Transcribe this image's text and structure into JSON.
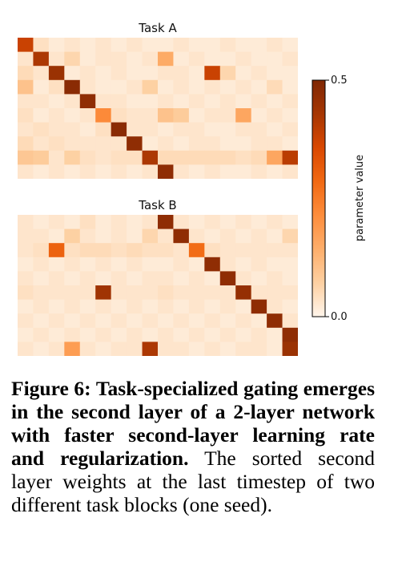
{
  "chart_data": [
    {
      "type": "heatmap",
      "title": "Task A",
      "rows": 10,
      "cols": 18,
      "vmin": 0.0,
      "vmax": 0.5,
      "values": [
        [
          0.38,
          0.04,
          0.02,
          0.03,
          0.02,
          0.03,
          0.02,
          0.03,
          0.02,
          0.02,
          0.03,
          0.02,
          0.02,
          0.03,
          0.02,
          0.02,
          0.03,
          0.02
        ],
        [
          0.03,
          0.42,
          0.03,
          0.06,
          0.02,
          0.03,
          0.03,
          0.02,
          0.03,
          0.15,
          0.02,
          0.03,
          0.02,
          0.02,
          0.03,
          0.02,
          0.02,
          0.03
        ],
        [
          0.05,
          0.03,
          0.45,
          0.02,
          0.03,
          0.02,
          0.03,
          0.02,
          0.02,
          0.03,
          0.03,
          0.02,
          0.38,
          0.06,
          0.02,
          0.03,
          0.02,
          0.02
        ],
        [
          0.1,
          0.02,
          0.04,
          0.48,
          0.03,
          0.02,
          0.02,
          0.03,
          0.07,
          0.02,
          0.03,
          0.02,
          0.03,
          0.02,
          0.03,
          0.02,
          0.05,
          0.02
        ],
        [
          0.03,
          0.03,
          0.02,
          0.03,
          0.47,
          0.03,
          0.03,
          0.02,
          0.02,
          0.03,
          0.02,
          0.03,
          0.02,
          0.03,
          0.02,
          0.03,
          0.02,
          0.03
        ],
        [
          0.04,
          0.02,
          0.03,
          0.02,
          0.03,
          0.22,
          0.04,
          0.03,
          0.03,
          0.1,
          0.08,
          0.02,
          0.03,
          0.03,
          0.16,
          0.02,
          0.03,
          0.02
        ],
        [
          0.03,
          0.04,
          0.03,
          0.03,
          0.02,
          0.04,
          0.48,
          0.03,
          0.03,
          0.02,
          0.03,
          0.03,
          0.02,
          0.02,
          0.03,
          0.03,
          0.02,
          0.03
        ],
        [
          0.05,
          0.03,
          0.04,
          0.03,
          0.03,
          0.03,
          0.03,
          0.47,
          0.02,
          0.03,
          0.02,
          0.03,
          0.03,
          0.02,
          0.02,
          0.03,
          0.03,
          0.02
        ],
        [
          0.09,
          0.08,
          0.03,
          0.07,
          0.04,
          0.03,
          0.04,
          0.04,
          0.42,
          0.05,
          0.05,
          0.05,
          0.05,
          0.05,
          0.04,
          0.05,
          0.16,
          0.4
        ],
        [
          0.03,
          0.02,
          0.03,
          0.02,
          0.03,
          0.02,
          0.03,
          0.02,
          0.03,
          0.47,
          0.03,
          0.02,
          0.03,
          0.02,
          0.02,
          0.03,
          0.02,
          0.03
        ]
      ]
    },
    {
      "type": "heatmap",
      "title": "Task B",
      "rows": 10,
      "cols": 18,
      "vmin": 0.0,
      "vmax": 0.5,
      "values": [
        [
          0.03,
          0.02,
          0.03,
          0.02,
          0.04,
          0.02,
          0.03,
          0.02,
          0.03,
          0.47,
          0.03,
          0.02,
          0.03,
          0.02,
          0.03,
          0.02,
          0.03,
          0.02
        ],
        [
          0.03,
          0.03,
          0.02,
          0.07,
          0.03,
          0.02,
          0.03,
          0.02,
          0.06,
          0.03,
          0.47,
          0.03,
          0.02,
          0.03,
          0.02,
          0.03,
          0.02,
          0.06
        ],
        [
          0.03,
          0.04,
          0.3,
          0.04,
          0.05,
          0.05,
          0.04,
          0.05,
          0.04,
          0.04,
          0.03,
          0.28,
          0.04,
          0.03,
          0.03,
          0.03,
          0.03,
          0.03
        ],
        [
          0.02,
          0.03,
          0.02,
          0.03,
          0.02,
          0.03,
          0.02,
          0.03,
          0.02,
          0.02,
          0.03,
          0.02,
          0.47,
          0.03,
          0.02,
          0.03,
          0.02,
          0.02
        ],
        [
          0.03,
          0.02,
          0.03,
          0.02,
          0.03,
          0.02,
          0.03,
          0.02,
          0.03,
          0.03,
          0.02,
          0.03,
          0.02,
          0.47,
          0.03,
          0.02,
          0.03,
          0.02
        ],
        [
          0.04,
          0.03,
          0.03,
          0.03,
          0.03,
          0.44,
          0.03,
          0.03,
          0.03,
          0.04,
          0.03,
          0.03,
          0.03,
          0.03,
          0.46,
          0.03,
          0.03,
          0.03
        ],
        [
          0.02,
          0.03,
          0.02,
          0.03,
          0.02,
          0.03,
          0.02,
          0.03,
          0.02,
          0.03,
          0.02,
          0.03,
          0.02,
          0.03,
          0.02,
          0.47,
          0.03,
          0.02
        ],
        [
          0.03,
          0.02,
          0.03,
          0.02,
          0.03,
          0.02,
          0.03,
          0.02,
          0.03,
          0.02,
          0.03,
          0.02,
          0.03,
          0.02,
          0.03,
          0.02,
          0.47,
          0.03
        ],
        [
          0.02,
          0.03,
          0.02,
          0.03,
          0.02,
          0.03,
          0.02,
          0.03,
          0.02,
          0.03,
          0.02,
          0.03,
          0.02,
          0.03,
          0.02,
          0.03,
          0.02,
          0.47
        ],
        [
          0.03,
          0.02,
          0.03,
          0.18,
          0.03,
          0.02,
          0.03,
          0.03,
          0.42,
          0.03,
          0.03,
          0.02,
          0.03,
          0.02,
          0.03,
          0.03,
          0.02,
          0.45
        ]
      ]
    }
  ],
  "colorbar": {
    "label": "parameter value",
    "ticks": [
      "0.5",
      "0.0"
    ],
    "colors": [
      "#fff5eb",
      "#fdd0a2",
      "#fdae6b",
      "#fd8d3c",
      "#f16913",
      "#d94801",
      "#a63603",
      "#7f2704"
    ]
  },
  "caption": {
    "lead": "Figure 6: Task-specialized gating emerges in the second layer of a 2-layer network with faster second-layer learning rate and regularization.",
    "body": " The sorted second layer weights at the last timestep of two different task blocks (one seed)."
  }
}
